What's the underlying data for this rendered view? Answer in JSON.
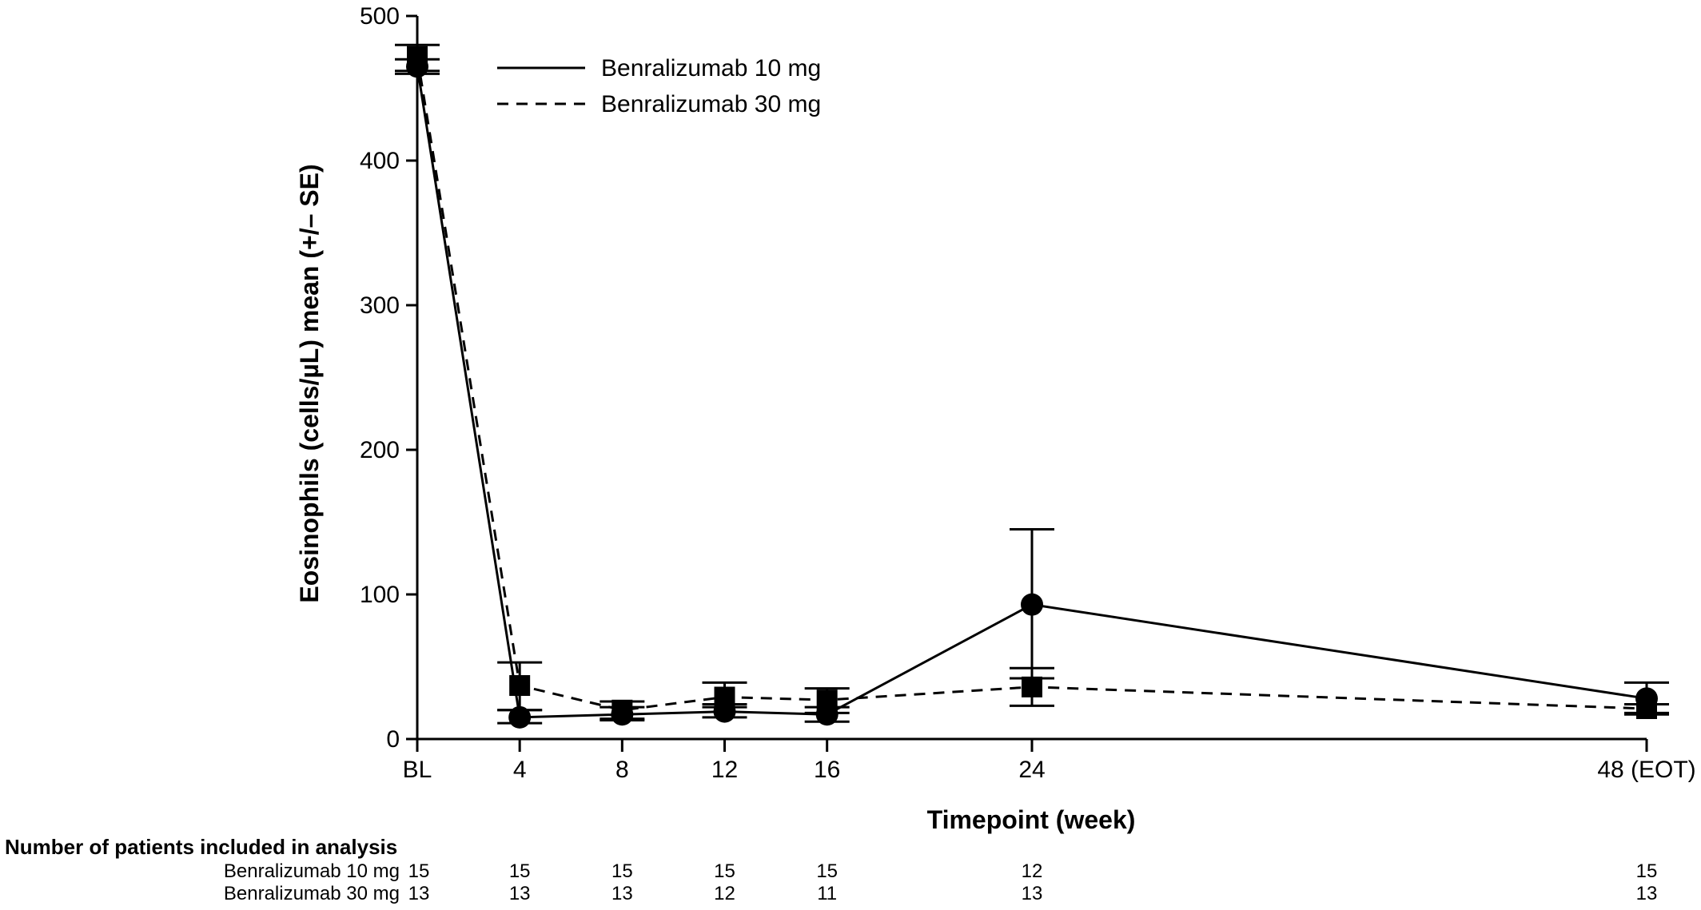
{
  "chart_data": {
    "type": "line",
    "title": "",
    "xlabel": "Timepoint (week)",
    "ylabel": "Eosinophils (cells/µL) mean (+/– SE)",
    "categories": [
      "BL",
      "4",
      "8",
      "12",
      "16",
      "24",
      "48 (EOT)"
    ],
    "x": [
      0,
      4,
      8,
      12,
      16,
      24,
      48
    ],
    "ylim": [
      0,
      500
    ],
    "yticks": [
      0,
      100,
      200,
      300,
      400,
      500
    ],
    "grid": false,
    "legend_position": "top",
    "series": [
      {
        "name": "Benralizumab 10 mg",
        "line_style": "solid",
        "marker": "circle",
        "values": [
          465,
          15,
          17,
          19,
          17,
          93,
          28
        ],
        "error_upper": [
          470,
          20,
          22,
          24,
          22,
          145,
          39
        ],
        "error_lower": [
          460,
          11,
          13,
          15,
          12,
          42,
          17
        ]
      },
      {
        "name": "Benralizumab 30 mg",
        "line_style": "dashed",
        "marker": "square",
        "values": [
          472,
          37,
          20,
          29,
          27,
          36,
          21
        ],
        "error_upper": [
          480,
          53,
          26,
          39,
          35,
          49,
          24
        ],
        "error_lower": [
          462,
          20,
          14,
          22,
          18,
          23,
          18
        ]
      }
    ],
    "patients_table": {
      "title": "Number of patients included in analysis",
      "rows": [
        {
          "label": "Benralizumab 10 mg",
          "counts": [
            "15",
            "15",
            "15",
            "15",
            "15",
            "12",
            "15"
          ]
        },
        {
          "label": "Benralizumab 30 mg",
          "counts": [
            "13",
            "13",
            "13",
            "12",
            "11",
            "13",
            "13"
          ]
        }
      ]
    }
  }
}
